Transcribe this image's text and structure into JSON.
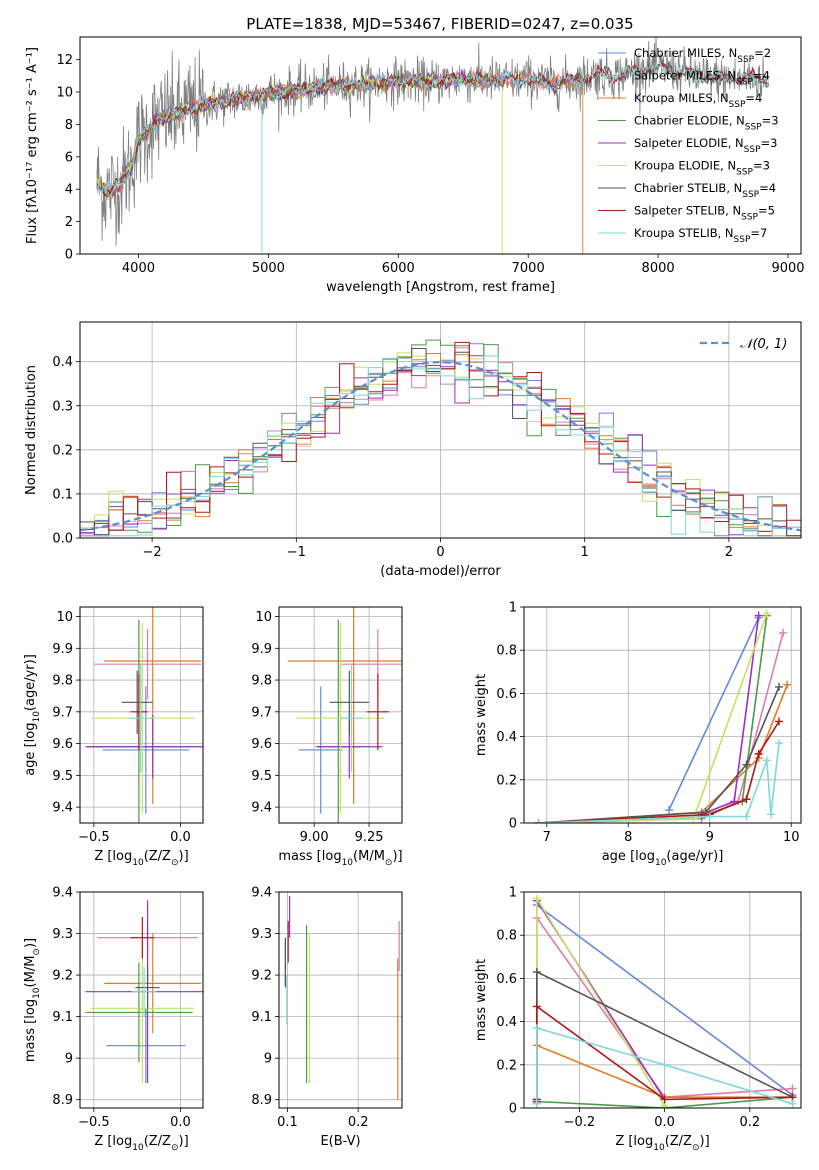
{
  "figure": {
    "title": "PLATE=1838, MJD=53467, FIBERID=0247, z=0.035",
    "colors": {
      "chabrier_miles": "#6688dd",
      "salpeter_miles": "#e07aaf",
      "kroupa_miles": "#e07b2a",
      "chabrier_elodie": "#4a9a4a",
      "salpeter_elodie": "#9b30c0",
      "kroupa_elodie": "#c8e060",
      "chabrier_stelib": "#555555",
      "salpeter_stelib": "#b01818",
      "kroupa_stelib": "#80d8d8",
      "data_gray": "#808080",
      "normal_curve": "#5b8ed6",
      "grid": "#b0b0b0"
    }
  },
  "chart_data": [
    {
      "id": "spectrum",
      "type": "line",
      "xlabel": "wavelength [Angstrom, rest frame]",
      "ylabel": "Flux [fλ10⁻¹⁷ erg cm⁻² s⁻¹ A⁻¹]",
      "xlim": [
        3550,
        9100
      ],
      "ylim": [
        0,
        13.4
      ],
      "xticks": [
        4000,
        5000,
        6000,
        7000,
        8000,
        9000
      ],
      "yticks": [
        0,
        2,
        4,
        6,
        8,
        10,
        12
      ],
      "grid": false,
      "legend_position": "top-right",
      "legend": [
        {
          "text": "Chabrier MILES, N",
          "sub": "SSP",
          "suffix": "=2",
          "color": "chabrier_miles"
        },
        {
          "text": "Salpeter MILES, N",
          "sub": "SSP",
          "suffix": "=4",
          "color": "salpeter_miles"
        },
        {
          "text": "Kroupa MILES, N",
          "sub": "SSP",
          "suffix": "=4",
          "color": "kroupa_miles"
        },
        {
          "text": "Chabrier ELODIE, N",
          "sub": "SSP",
          "suffix": "=3",
          "color": "chabrier_elodie"
        },
        {
          "text": "Salpeter ELODIE, N",
          "sub": "SSP",
          "suffix": "=3",
          "color": "salpeter_elodie"
        },
        {
          "text": "Kroupa ELODIE, N",
          "sub": "SSP",
          "suffix": "=3",
          "color": "kroupa_elodie"
        },
        {
          "text": "Chabrier STELIB, N",
          "sub": "SSP",
          "suffix": "=4",
          "color": "chabrier_stelib"
        },
        {
          "text": "Salpeter STELIB, N",
          "sub": "SSP",
          "suffix": "=5",
          "color": "salpeter_stelib"
        },
        {
          "text": "Kroupa STELIB, N",
          "sub": "SSP",
          "suffix": "=7",
          "color": "kroupa_stelib"
        }
      ],
      "continuum": [
        [
          3680,
          4.5
        ],
        [
          3750,
          3.8
        ],
        [
          3850,
          4.2
        ],
        [
          3950,
          5.5
        ],
        [
          4000,
          7.0
        ],
        [
          4100,
          7.9
        ],
        [
          4200,
          8.5
        ],
        [
          4300,
          8.6
        ],
        [
          4400,
          9.0
        ],
        [
          4600,
          9.4
        ],
        [
          4800,
          9.6
        ],
        [
          5000,
          9.9
        ],
        [
          5200,
          10.1
        ],
        [
          5500,
          10.4
        ],
        [
          5800,
          10.5
        ],
        [
          6000,
          10.7
        ],
        [
          6200,
          10.6
        ],
        [
          6500,
          10.8
        ],
        [
          6800,
          10.7
        ],
        [
          7000,
          10.8
        ],
        [
          7200,
          10.5
        ],
        [
          7400,
          10.8
        ],
        [
          7500,
          11.1
        ],
        [
          7700,
          11.0
        ],
        [
          7900,
          11.5
        ],
        [
          8100,
          11.4
        ],
        [
          8300,
          11.0
        ],
        [
          8500,
          10.8
        ],
        [
          8700,
          10.9
        ],
        [
          8850,
          10.7
        ]
      ],
      "model_series": [
        {
          "color": "chabrier_miles",
          "xmax": 7400
        },
        {
          "color": "salpeter_miles",
          "xmax": 7400
        },
        {
          "color": "kroupa_miles",
          "xmax": 7400,
          "drop_at": 7420
        },
        {
          "color": "chabrier_elodie",
          "xmax": 6800
        },
        {
          "color": "salpeter_elodie",
          "xmax": 6800
        },
        {
          "color": "kroupa_elodie",
          "xmax": 6800,
          "drop_at": 6800
        },
        {
          "color": "chabrier_stelib",
          "xmax": 8850
        },
        {
          "color": "salpeter_stelib",
          "xmax": 8850
        },
        {
          "color": "kroupa_stelib",
          "xmax": 8850,
          "drop_at": 4950
        }
      ]
    },
    {
      "id": "residuals",
      "type": "histogram",
      "xlabel": "(data-model)/error",
      "ylabel": "Normed distribution",
      "xlim": [
        -2.5,
        2.5
      ],
      "ylim": [
        0,
        0.49
      ],
      "xticks": [
        -2,
        -1,
        0,
        1,
        2
      ],
      "xticklabels": [
        "−2",
        "−1",
        "0",
        "1",
        "2"
      ],
      "yticks": [
        0.0,
        0.1,
        0.2,
        0.3,
        0.4
      ],
      "yticklabels": [
        "0.0",
        "0.1",
        "0.2",
        "0.3",
        "0.4"
      ],
      "grid": true,
      "bin_width": 0.1,
      "legend_position": "top-right",
      "normal_label": "𝒩(0, 1)",
      "series_colors": [
        "chabrier_miles",
        "salpeter_miles",
        "kroupa_miles",
        "chabrier_elodie",
        "salpeter_elodie",
        "kroupa_elodie",
        "chabrier_stelib",
        "salpeter_stelib",
        "kroupa_stelib"
      ]
    },
    {
      "id": "z_age",
      "type": "scatter",
      "xlabel_parts": [
        "Z [log",
        "10",
        "(Z/Z",
        "⊙",
        ")]"
      ],
      "ylabel_parts": [
        "age  [log",
        "10",
        "(age/yr)]"
      ],
      "xlim": [
        -0.58,
        0.13
      ],
      "ylim": [
        9.35,
        10.03
      ],
      "xticks": [
        -0.5,
        0.0
      ],
      "xticklabels": [
        "−0.5",
        "0.0"
      ],
      "yticks": [
        9.4,
        9.5,
        9.6,
        9.7,
        9.8,
        9.9,
        10.0
      ],
      "grid": true,
      "points": [
        {
          "c": "chabrier_miles",
          "x": -0.2,
          "xerr": 0.25,
          "y": 9.58,
          "yerr": 0.2
        },
        {
          "c": "salpeter_miles",
          "x": -0.19,
          "xerr": 0.31,
          "y": 9.85,
          "yerr": 0.11
        },
        {
          "c": "kroupa_miles",
          "x": -0.16,
          "xerr": 0.28,
          "y": 9.86,
          "yerr": 0.45
        },
        {
          "c": "chabrier_elodie",
          "x": -0.24,
          "xerr": 0.31,
          "y": 9.59,
          "yerr": 0.4
        },
        {
          "c": "salpeter_elodie",
          "x": -0.16,
          "xerr": 0.38,
          "y": 9.59,
          "yerr": 0.1
        },
        {
          "c": "kroupa_elodie",
          "x": -0.22,
          "xerr": 0.3,
          "y": 9.68,
          "yerr": 0.3
        },
        {
          "c": "chabrier_stelib",
          "x": -0.25,
          "xerr": 0.09,
          "y": 9.73,
          "yerr": 0.1
        },
        {
          "c": "salpeter_stelib",
          "x": -0.24,
          "xerr": 0.05,
          "y": 9.7,
          "yerr": 0.12
        },
        {
          "c": "kroupa_stelib",
          "x": -0.23,
          "xerr": 0.07,
          "y": 9.68,
          "yerr": 0.17
        }
      ]
    },
    {
      "id": "mass_age",
      "type": "scatter",
      "xlabel_parts": [
        "mass [log",
        "10",
        "(M/M",
        "⊙",
        ")]"
      ],
      "xlim": [
        8.84,
        9.4
      ],
      "ylim": [
        9.35,
        10.03
      ],
      "xticks": [
        9.0,
        9.25
      ],
      "xticklabels": [
        "9.00",
        "9.25"
      ],
      "yticks": [
        9.4,
        9.5,
        9.6,
        9.7,
        9.8,
        9.9,
        10.0
      ],
      "grid": true,
      "points": [
        {
          "c": "chabrier_miles",
          "x": 9.03,
          "xerr": 0.1,
          "y": 9.58,
          "yerr": 0.2
        },
        {
          "c": "salpeter_miles",
          "x": 9.29,
          "xerr": 0.17,
          "y": 9.85,
          "yerr": 0.11
        },
        {
          "c": "kroupa_miles",
          "x": 9.18,
          "xerr": 0.3,
          "y": 9.86,
          "yerr": 0.45
        },
        {
          "c": "chabrier_elodie",
          "x": 9.11,
          "xerr": 0.1,
          "y": 9.59,
          "yerr": 0.4
        },
        {
          "c": "salpeter_elodie",
          "x": 9.16,
          "xerr": 0.15,
          "y": 9.59,
          "yerr": 0.1
        },
        {
          "c": "kroupa_elodie",
          "x": 9.12,
          "xerr": 0.2,
          "y": 9.68,
          "yerr": 0.3
        },
        {
          "c": "chabrier_stelib",
          "x": 9.16,
          "xerr": 0.09,
          "y": 9.73,
          "yerr": 0.1
        },
        {
          "c": "salpeter_stelib",
          "x": 9.29,
          "xerr": 0.05,
          "y": 9.7,
          "yerr": 0.12
        },
        {
          "c": "kroupa_stelib",
          "x": 9.17,
          "xerr": 0.05,
          "y": 9.68,
          "yerr": 0.17
        }
      ]
    },
    {
      "id": "age_weight",
      "type": "line",
      "xlabel_parts": [
        "age  [log",
        "10",
        "(age/yr)]"
      ],
      "ylabel": "mass weight",
      "xlim": [
        6.72,
        10.12
      ],
      "ylim": [
        0,
        1.0
      ],
      "xticks": [
        7,
        8,
        9,
        10
      ],
      "yticks": [
        0.0,
        0.2,
        0.4,
        0.6,
        0.8,
        1.0
      ],
      "grid": true,
      "series": [
        {
          "c": "chabrier_miles",
          "x": [
            8.5,
            9.6
          ],
          "y": [
            0.06,
            0.95
          ]
        },
        {
          "c": "salpeter_miles",
          "x": [
            6.9,
            8.9,
            9.35,
            9.9
          ],
          "y": [
            0.0,
            0.02,
            0.1,
            0.88
          ]
        },
        {
          "c": "kroupa_miles",
          "x": [
            6.9,
            8.9,
            9.6,
            9.95
          ],
          "y": [
            0.0,
            0.05,
            0.3,
            0.64
          ]
        },
        {
          "c": "chabrier_elodie",
          "x": [
            8.9,
            9.4,
            9.7
          ],
          "y": [
            0.03,
            0.1,
            0.96
          ]
        },
        {
          "c": "salpeter_elodie",
          "x": [
            8.9,
            9.3,
            9.6
          ],
          "y": [
            0.04,
            0.1,
            0.96
          ]
        },
        {
          "c": "kroupa_elodie",
          "x": [
            6.9,
            8.8,
            9.7
          ],
          "y": [
            0.0,
            0.02,
            0.97
          ]
        },
        {
          "c": "chabrier_stelib",
          "x": [
            6.9,
            8.95,
            9.45,
            9.85
          ],
          "y": [
            0.0,
            0.05,
            0.27,
            0.63
          ]
        },
        {
          "c": "salpeter_stelib",
          "x": [
            6.9,
            9.0,
            9.45,
            9.6,
            9.85
          ],
          "y": [
            0.0,
            0.04,
            0.11,
            0.32,
            0.47
          ]
        },
        {
          "c": "kroupa_stelib",
          "x": [
            6.9,
            9.0,
            9.45,
            9.7,
            9.75,
            9.85
          ],
          "y": [
            0.0,
            0.03,
            0.03,
            0.29,
            0.04,
            0.37
          ]
        }
      ]
    },
    {
      "id": "z_mass",
      "type": "scatter",
      "xlabel_parts": [
        "Z [log",
        "10",
        "(Z/Z",
        "⊙",
        ")]"
      ],
      "ylabel_parts": [
        "mass [log",
        "10",
        "(M/M",
        "⊙",
        ")]"
      ],
      "xlim": [
        -0.58,
        0.13
      ],
      "ylim": [
        8.88,
        9.4
      ],
      "xticks": [
        -0.5,
        0.0
      ],
      "xticklabels": [
        "−0.5",
        "0.0"
      ],
      "yticks": [
        8.9,
        9.0,
        9.1,
        9.2,
        9.3,
        9.4
      ],
      "grid": true,
      "points": [
        {
          "c": "chabrier_miles",
          "x": -0.2,
          "xerr": 0.23,
          "y": 9.03,
          "yerr": 0.09
        },
        {
          "c": "salpeter_miles",
          "x": -0.19,
          "xerr": 0.29,
          "y": 9.29,
          "yerr": 0.04
        },
        {
          "c": "kroupa_miles",
          "x": -0.16,
          "xerr": 0.28,
          "y": 9.18,
          "yerr": 0.12
        },
        {
          "c": "chabrier_elodie",
          "x": -0.24,
          "xerr": 0.31,
          "y": 9.11,
          "yerr": 0.12
        },
        {
          "c": "salpeter_elodie",
          "x": -0.19,
          "xerr": 0.36,
          "y": 9.16,
          "yerr": 0.22
        },
        {
          "c": "kroupa_elodie",
          "x": -0.22,
          "xerr": 0.3,
          "y": 9.12,
          "yerr": 0.18
        },
        {
          "c": "chabrier_stelib",
          "x": -0.19,
          "xerr": 0.07,
          "y": 9.17,
          "yerr": 0.05
        },
        {
          "c": "salpeter_stelib",
          "x": -0.22,
          "xerr": 0.07,
          "y": 9.29,
          "yerr": 0.05
        },
        {
          "c": "kroupa_stelib",
          "x": -0.21,
          "xerr": 0.07,
          "y": 9.16,
          "yerr": 0.06
        }
      ]
    },
    {
      "id": "ebv_mass",
      "type": "scatter",
      "xlabel": "E(B-V)",
      "xlim": [
        0.088,
        0.262
      ],
      "ylim": [
        8.88,
        9.4
      ],
      "xticks": [
        0.1,
        0.2
      ],
      "xticklabels": [
        "0.1",
        "0.2"
      ],
      "yticks": [
        8.9,
        9.0,
        9.1,
        9.2,
        9.3,
        9.4
      ],
      "grid": true,
      "points": [
        {
          "c": "chabrier_miles",
          "x": 0.097,
          "y": 9.23,
          "yerr": 0.05
        },
        {
          "c": "salpeter_miles",
          "x": 0.258,
          "y": 9.27,
          "yerr": 0.06
        },
        {
          "c": "kroupa_miles",
          "x": 0.256,
          "y": 9.07,
          "yerr": 0.17
        },
        {
          "c": "chabrier_elodie",
          "x": 0.127,
          "y": 9.13,
          "yerr": 0.19
        },
        {
          "c": "salpeter_elodie",
          "x": 0.103,
          "y": 9.34,
          "yerr": 0.05
        },
        {
          "c": "kroupa_elodie",
          "x": 0.131,
          "y": 9.12,
          "yerr": 0.18
        },
        {
          "c": "chabrier_stelib",
          "x": 0.097,
          "y": 9.23,
          "yerr": 0.06
        },
        {
          "c": "salpeter_stelib",
          "x": 0.101,
          "y": 9.28,
          "yerr": 0.05
        },
        {
          "c": "kroupa_stelib",
          "x": 0.099,
          "y": 9.14,
          "yerr": 0.06
        }
      ]
    },
    {
      "id": "z_weight",
      "type": "line",
      "xlabel_parts": [
        "Z [log",
        "10",
        "(Z/Z",
        "⊙",
        ")]"
      ],
      "ylabel": "mass weight",
      "xlim": [
        -0.33,
        0.32
      ],
      "ylim": [
        0,
        1.0
      ],
      "xticks": [
        -0.2,
        0.0,
        0.2
      ],
      "xticklabels": [
        "−0.2",
        "0.0",
        "0.2"
      ],
      "yticks": [
        0.0,
        0.2,
        0.4,
        0.6,
        0.8,
        1.0
      ],
      "grid": true,
      "series": [
        {
          "c": "chabrier_miles",
          "x": [
            -0.3,
            0.3
          ],
          "y": [
            0.94,
            0.06
          ]
        },
        {
          "c": "salpeter_miles",
          "x": [
            -0.3,
            -0.3,
            0.0,
            0.3
          ],
          "y": [
            0.02,
            0.88,
            0.05,
            0.09
          ]
        },
        {
          "c": "kroupa_miles",
          "x": [
            -0.3,
            -0.3,
            0.0,
            0.3
          ],
          "y": [
            0.02,
            0.29,
            0.05,
            0.05
          ]
        },
        {
          "c": "chabrier_elodie",
          "x": [
            -0.3,
            0.0,
            0.3
          ],
          "y": [
            0.03,
            0.0,
            0.05
          ]
        },
        {
          "c": "salpeter_elodie",
          "x": [
            -0.3,
            -0.3,
            0.0
          ],
          "y": [
            0.03,
            0.96,
            0.04
          ]
        },
        {
          "c": "kroupa_elodie",
          "x": [
            -0.3,
            -0.3,
            0.0
          ],
          "y": [
            0.02,
            0.97,
            0.01
          ]
        },
        {
          "c": "chabrier_stelib",
          "x": [
            -0.3,
            -0.3,
            0.3
          ],
          "y": [
            0.03,
            0.63,
            0.05
          ]
        },
        {
          "c": "salpeter_stelib",
          "x": [
            -0.3,
            -0.3,
            0.0,
            0.3
          ],
          "y": [
            0.04,
            0.47,
            0.04,
            0.05
          ]
        },
        {
          "c": "kroupa_stelib",
          "x": [
            -0.3,
            -0.3,
            0.0,
            0.3
          ],
          "y": [
            0.02,
            0.37,
            0.2,
            0.02
          ]
        }
      ]
    }
  ]
}
